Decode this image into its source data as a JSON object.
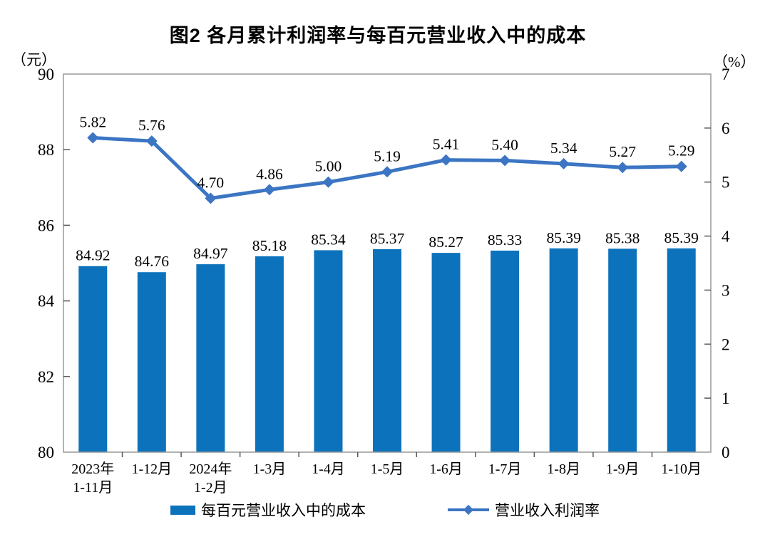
{
  "chart_data": {
    "type": "combo",
    "title": "图2 各月累计利润率与每百元营业收入中的成本",
    "categories": [
      "2023年\n1-11月",
      "1-12月",
      "2024年\n1-2月",
      "1-3月",
      "1-4月",
      "1-5月",
      "1-6月",
      "1-7月",
      "1-8月",
      "1-9月",
      "1-10月"
    ],
    "series": [
      {
        "name": "每百元营业收入中的成本",
        "type": "bar",
        "axis": "left",
        "color": "#0C72BC",
        "values": [
          84.92,
          84.76,
          84.97,
          85.18,
          85.34,
          85.37,
          85.27,
          85.33,
          85.39,
          85.38,
          85.39
        ]
      },
      {
        "name": "营业收入利润率",
        "type": "line",
        "axis": "right",
        "color": "#3B75C3",
        "marker": "diamond",
        "values": [
          5.82,
          5.76,
          4.7,
          4.86,
          5.0,
          5.19,
          5.41,
          5.4,
          5.34,
          5.27,
          5.29
        ]
      }
    ],
    "axes": {
      "left": {
        "unit": "（元）",
        "min": 80,
        "max": 90,
        "tick_step": 2,
        "ticks": [
          80,
          82,
          84,
          86,
          88,
          90
        ]
      },
      "right": {
        "unit": "（%）",
        "min": 0,
        "max": 7,
        "tick_step": 1,
        "ticks": [
          0,
          1,
          2,
          3,
          4,
          5,
          6,
          7
        ]
      }
    },
    "grid": false,
    "legend_position": "bottom",
    "data_label_decimals": 2,
    "frame_color": "#989898",
    "tick_color": "#595959",
    "text_color": "#000000"
  }
}
